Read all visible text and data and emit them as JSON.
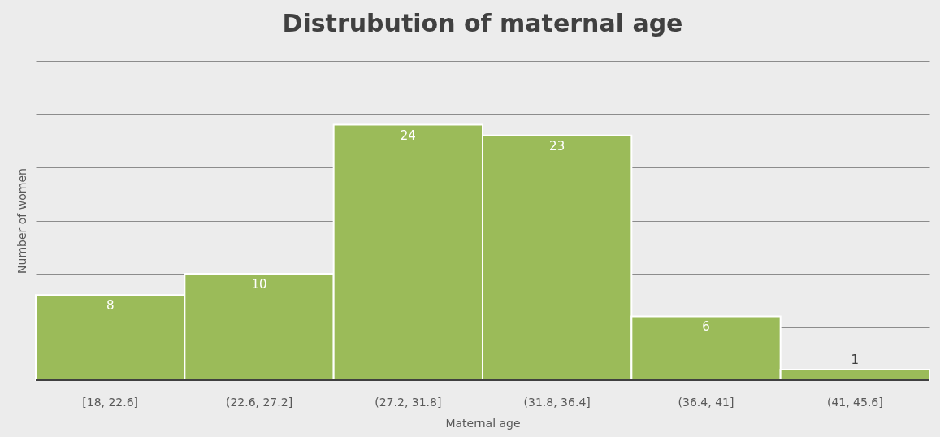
{
  "chart_data": {
    "type": "bar",
    "title": "Distrubution of maternal age",
    "xlabel": "Maternal age",
    "ylabel": "Number of women",
    "categories": [
      "[18, 22.6]",
      "(22.6, 27.2]",
      "(27.2, 31.8]",
      "(31.8, 36.4]",
      "(36.4, 41]",
      "(41, 45.6]"
    ],
    "values": [
      8,
      10,
      24,
      23,
      6,
      1
    ],
    "color": "#9bbb59",
    "data_labels": true,
    "tick_labels": "x",
    "grid": "y",
    "ylim": [
      0,
      30
    ],
    "yticks": [
      {
        "value": 0,
        "label": null
      },
      {
        "value": 5,
        "label": null
      },
      {
        "value": 10,
        "label": null
      },
      {
        "value": 15,
        "label": null
      },
      {
        "value": 20,
        "label": null
      },
      {
        "value": 25,
        "label": null
      },
      {
        "value": 30,
        "label": null
      }
    ]
  }
}
